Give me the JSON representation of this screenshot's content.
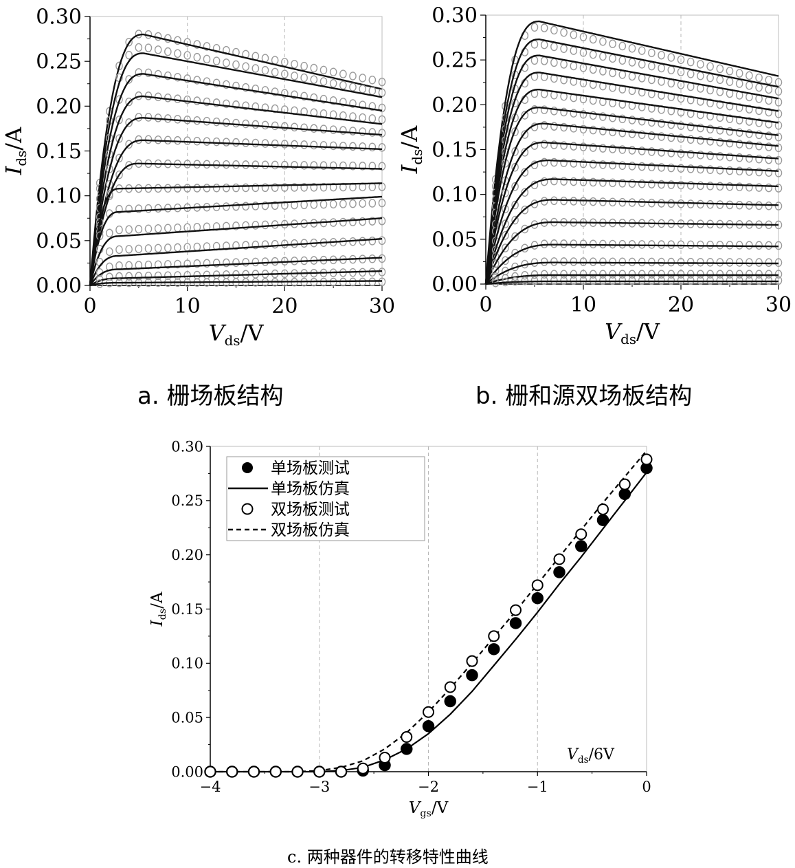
{
  "captions": {
    "a": "a. 栅场板结构",
    "b": "b. 栅和源双场板结构",
    "c": "c. 两种器件的转移特性曲线"
  },
  "chart_data": [
    {
      "id": "a",
      "type": "line",
      "xlabel": {
        "main": "V",
        "sub": "ds",
        "unit": "/V"
      },
      "ylabel": {
        "main": "I",
        "sub": "ds",
        "unit": "/A"
      },
      "xlim": [
        0,
        30
      ],
      "ylim": [
        0,
        0.3
      ],
      "xticks": [
        0,
        10,
        20,
        30
      ],
      "xtick_labels": [
        "0",
        "10",
        "20",
        "30"
      ],
      "yticks": [
        0,
        0.05,
        0.1,
        0.15,
        0.2,
        0.25,
        0.3
      ],
      "ytick_labels": [
        "0.00",
        "0.05",
        "0.10",
        "0.15",
        "0.20",
        "0.25",
        "0.30"
      ],
      "grid": "vertical dashed",
      "measured_style": "open circles (gray)",
      "simulated_style": "solid black lines",
      "curves": [
        {
          "peak_x": 5.5,
          "peak_y": 0.28,
          "end_y": 0.219,
          "meas_peak_y": 0.281,
          "meas_end_y": 0.227
        },
        {
          "peak_x": 5.5,
          "peak_y": 0.259,
          "end_y": 0.21,
          "meas_peak_y": 0.266,
          "meas_end_y": 0.215
        },
        {
          "peak_x": 5.5,
          "peak_y": 0.236,
          "end_y": 0.195,
          "meas_peak_y": 0.238,
          "meas_end_y": 0.198
        },
        {
          "peak_x": 5.5,
          "peak_y": 0.211,
          "end_y": 0.18,
          "meas_peak_y": 0.212,
          "meas_end_y": 0.185
        },
        {
          "peak_x": 5.5,
          "peak_y": 0.187,
          "end_y": 0.168,
          "meas_peak_y": 0.188,
          "meas_end_y": 0.17
        },
        {
          "peak_x": 5.5,
          "peak_y": 0.162,
          "end_y": 0.152,
          "meas_peak_y": 0.163,
          "meas_end_y": 0.154
        },
        {
          "peak_x": 5.0,
          "peak_y": 0.136,
          "end_y": 0.13,
          "meas_peak_y": 0.136,
          "meas_end_y": 0.133
        },
        {
          "peak_x": 3.0,
          "peak_y": 0.108,
          "end_y": 0.114,
          "meas_peak_y": 0.108,
          "meas_end_y": 0.11
        },
        {
          "peak_x": 3.0,
          "peak_y": 0.082,
          "end_y": 0.099,
          "meas_peak_y": 0.085,
          "meas_end_y": 0.092
        },
        {
          "peak_x": 3.0,
          "peak_y": 0.055,
          "end_y": 0.075,
          "meas_peak_y": 0.062,
          "meas_end_y": 0.072
        },
        {
          "peak_x": 3.0,
          "peak_y": 0.033,
          "end_y": 0.052,
          "meas_peak_y": 0.04,
          "meas_end_y": 0.05
        },
        {
          "peak_x": 3.0,
          "peak_y": 0.018,
          "end_y": 0.031,
          "meas_peak_y": 0.022,
          "meas_end_y": 0.03
        },
        {
          "peak_x": 3.0,
          "peak_y": 0.008,
          "end_y": 0.016,
          "meas_peak_y": 0.01,
          "meas_end_y": 0.015
        },
        {
          "peak_x": 3.0,
          "peak_y": 0.003,
          "end_y": 0.005,
          "meas_peak_y": 0.003,
          "meas_end_y": 0.004
        }
      ]
    },
    {
      "id": "b",
      "type": "line",
      "xlabel": {
        "main": "V",
        "sub": "ds",
        "unit": "/V"
      },
      "ylabel": {
        "main": "I",
        "sub": "ds",
        "unit": "/A"
      },
      "xlim": [
        0,
        30
      ],
      "ylim": [
        0,
        0.3
      ],
      "xticks": [
        0,
        10,
        20,
        30
      ],
      "xtick_labels": [
        "0",
        "10",
        "20",
        "30"
      ],
      "yticks": [
        0,
        0.05,
        0.1,
        0.15,
        0.2,
        0.25,
        0.3
      ],
      "ytick_labels": [
        "0.00",
        "0.05",
        "0.10",
        "0.15",
        "0.20",
        "0.25",
        "0.30"
      ],
      "grid": "vertical dashed",
      "measured_style": "open circles (gray)",
      "simulated_style": "solid black lines",
      "curves": [
        {
          "peak_x": 5.5,
          "peak_y": 0.293,
          "end_y": 0.232,
          "meas_peak_y": 0.287,
          "meas_end_y": 0.225
        },
        {
          "peak_x": 5.5,
          "peak_y": 0.273,
          "end_y": 0.22,
          "meas_peak_y": 0.268,
          "meas_end_y": 0.215
        },
        {
          "peak_x": 5.5,
          "peak_y": 0.255,
          "end_y": 0.207,
          "meas_peak_y": 0.25,
          "meas_end_y": 0.203
        },
        {
          "peak_x": 5.5,
          "peak_y": 0.236,
          "end_y": 0.193,
          "meas_peak_y": 0.232,
          "meas_end_y": 0.19
        },
        {
          "peak_x": 5.5,
          "peak_y": 0.217,
          "end_y": 0.18,
          "meas_peak_y": 0.213,
          "meas_end_y": 0.177
        },
        {
          "peak_x": 5.5,
          "peak_y": 0.197,
          "end_y": 0.166,
          "meas_peak_y": 0.195,
          "meas_end_y": 0.164
        },
        {
          "peak_x": 6.0,
          "peak_y": 0.179,
          "end_y": 0.154,
          "meas_peak_y": 0.177,
          "meas_end_y": 0.152
        },
        {
          "peak_x": 6.0,
          "peak_y": 0.158,
          "end_y": 0.14,
          "meas_peak_y": 0.156,
          "meas_end_y": 0.138
        },
        {
          "peak_x": 6.5,
          "peak_y": 0.138,
          "end_y": 0.126,
          "meas_peak_y": 0.136,
          "meas_end_y": 0.124
        },
        {
          "peak_x": 7.0,
          "peak_y": 0.117,
          "end_y": 0.109,
          "meas_peak_y": 0.115,
          "meas_end_y": 0.107
        },
        {
          "peak_x": 7.0,
          "peak_y": 0.094,
          "end_y": 0.088,
          "meas_peak_y": 0.093,
          "meas_end_y": 0.087
        },
        {
          "peak_x": 7.0,
          "peak_y": 0.069,
          "end_y": 0.066,
          "meas_peak_y": 0.069,
          "meas_end_y": 0.066
        },
        {
          "peak_x": 7.0,
          "peak_y": 0.044,
          "end_y": 0.042,
          "meas_peak_y": 0.045,
          "meas_end_y": 0.043
        },
        {
          "peak_x": 7.0,
          "peak_y": 0.024,
          "end_y": 0.023,
          "meas_peak_y": 0.025,
          "meas_end_y": 0.024
        },
        {
          "peak_x": 7.0,
          "peak_y": 0.01,
          "end_y": 0.01,
          "meas_peak_y": 0.011,
          "meas_end_y": 0.011
        },
        {
          "peak_x": 7.0,
          "peak_y": 0.003,
          "end_y": 0.003,
          "meas_peak_y": 0.004,
          "meas_end_y": 0.004
        }
      ]
    },
    {
      "id": "c",
      "type": "scatter",
      "xlabel": {
        "main": "V",
        "sub": "gs",
        "unit": "/V"
      },
      "ylabel": {
        "main": "I",
        "sub": "ds",
        "unit": "/A"
      },
      "xlim": [
        -4,
        0
      ],
      "ylim": [
        0,
        0.3
      ],
      "xticks": [
        -4,
        -3,
        -2,
        -1,
        0
      ],
      "xtick_labels": [
        "−4",
        "−3",
        "−2",
        "−1",
        "0"
      ],
      "yticks": [
        0,
        0.05,
        0.1,
        0.15,
        0.2,
        0.25,
        0.3
      ],
      "ytick_labels": [
        "0.00",
        "0.05",
        "0.10",
        "0.15",
        "0.20",
        "0.25",
        "0.30"
      ],
      "grid": "vertical dashed",
      "annotation": {
        "main": "V",
        "sub": "ds",
        "unit": "/6V"
      },
      "legend_position": "top-left",
      "x": [
        -4.0,
        -3.8,
        -3.6,
        -3.4,
        -3.2,
        -3.0,
        -2.8,
        -2.6,
        -2.4,
        -2.2,
        -2.0,
        -1.8,
        -1.6,
        -1.4,
        -1.2,
        -1.0,
        -0.8,
        -0.6,
        -0.4,
        -0.2,
        0.0
      ],
      "series": [
        {
          "name": "单场板测试",
          "style": "filled-circle",
          "values": [
            0.0,
            0.0,
            0.0,
            0.0,
            0.0,
            0.0,
            0.0,
            0.001,
            0.006,
            0.021,
            0.042,
            0.065,
            0.089,
            0.113,
            0.137,
            0.16,
            0.184,
            0.208,
            0.232,
            0.256,
            0.28
          ]
        },
        {
          "name": "单场板仿真",
          "style": "solid-line",
          "values": [
            0.0,
            0.0,
            0.0,
            0.0,
            0.0,
            0.0,
            0.001,
            0.004,
            0.011,
            0.021,
            0.035,
            0.053,
            0.074,
            0.098,
            0.122,
            0.147,
            0.173,
            0.198,
            0.224,
            0.25,
            0.276
          ]
        },
        {
          "name": "双场板测试",
          "style": "open-circle",
          "values": [
            0.0,
            0.0,
            0.0,
            0.0,
            0.0,
            0.0,
            0.0,
            0.003,
            0.013,
            0.032,
            0.055,
            0.078,
            0.102,
            0.125,
            0.149,
            0.172,
            0.196,
            0.219,
            0.242,
            0.265,
            0.288
          ]
        },
        {
          "name": "双场板仿真",
          "style": "dashed-line",
          "values": [
            0.0,
            0.0,
            0.0,
            0.0,
            0.0,
            0.001,
            0.004,
            0.01,
            0.021,
            0.036,
            0.055,
            0.077,
            0.1,
            0.124,
            0.148,
            0.173,
            0.198,
            0.223,
            0.248,
            0.272,
            0.296
          ]
        }
      ]
    }
  ]
}
